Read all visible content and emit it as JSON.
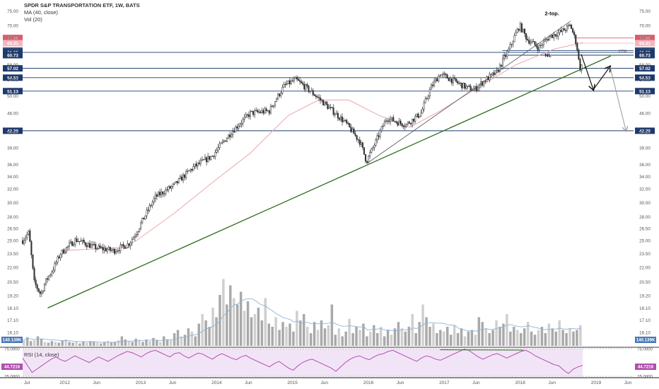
{
  "header": {
    "title": "SPDR S&P TRANSPORTATION ETF, 1W, BATS",
    "ma_label": "MA (40, close)",
    "vol_label": "Vol (20)",
    "rsi_label": "RSI (14, close)"
  },
  "annotations": {
    "two_top": "2-top.",
    "neckline": "NL",
    "xtm": "XTM"
  },
  "colors": {
    "candles": "#333333",
    "ma": "#e8a8a8",
    "trendline": "#2e6b1f",
    "hline": "#2a4d7f",
    "resistance": "#e05a6a",
    "volume": "#a9a9a9",
    "volume_ma": "#8fb3d9",
    "rsi_line": "#b04fb0",
    "rsi_fill": "#f2e4f7"
  },
  "chart_data": [
    {
      "type": "candlestick",
      "name": "price",
      "y_scale": "log",
      "ylim": [
        15.1,
        77.5
      ],
      "yticks": [
        16.1,
        17.1,
        18.1,
        19.2,
        20.5,
        22.0,
        23.5,
        25.0,
        26.5,
        28.0,
        30.0,
        32.0,
        34.0,
        36.0,
        39.0,
        42.0,
        46.0,
        50.0,
        54.0,
        58.0,
        62.0,
        66.0,
        70.0,
        75.0
      ],
      "xlim": [
        2011.5,
        2019.55
      ],
      "xticks": [
        {
          "label": "Jul",
          "t": 2011.5
        },
        {
          "label": "2012",
          "t": 2012.0
        },
        {
          "label": "Jun",
          "t": 2012.42
        },
        {
          "label": "2013",
          "t": 2013.0
        },
        {
          "label": "Jun",
          "t": 2013.42
        },
        {
          "label": "2014",
          "t": 2014.0
        },
        {
          "label": "Jun",
          "t": 2014.42
        },
        {
          "label": "2015",
          "t": 2015.0
        },
        {
          "label": "Jun",
          "t": 2015.42
        },
        {
          "label": "2016",
          "t": 2016.0
        },
        {
          "label": "Jun",
          "t": 2016.42
        },
        {
          "label": "2017",
          "t": 2017.0
        },
        {
          "label": "Jun",
          "t": 2017.42
        },
        {
          "label": "2018",
          "t": 2018.0
        },
        {
          "label": "Jun",
          "t": 2018.42
        },
        {
          "label": "2019",
          "t": 2019.0
        },
        {
          "label": "Jun",
          "t": 2019.42
        }
      ],
      "price_path": [
        [
          2011.5,
          25.0
        ],
        [
          2011.58,
          26.0
        ],
        [
          2011.65,
          20.5
        ],
        [
          2011.74,
          19.3
        ],
        [
          2011.8,
          20.5
        ],
        [
          2011.9,
          21.8
        ],
        [
          2012.0,
          23.5
        ],
        [
          2012.2,
          25.1
        ],
        [
          2012.45,
          24.2
        ],
        [
          2012.7,
          23.8
        ],
        [
          2012.9,
          24.6
        ],
        [
          2013.0,
          26.0
        ],
        [
          2013.25,
          30.8
        ],
        [
          2013.5,
          32.6
        ],
        [
          2013.75,
          35.5
        ],
        [
          2014.0,
          37.5
        ],
        [
          2014.25,
          42.0
        ],
        [
          2014.5,
          46.0
        ],
        [
          2014.75,
          46.5
        ],
        [
          2014.95,
          52.5
        ],
        [
          2015.1,
          54.0
        ],
        [
          2015.3,
          51.0
        ],
        [
          2015.55,
          47.0
        ],
        [
          2015.75,
          44.0
        ],
        [
          2015.95,
          40.0
        ],
        [
          2016.03,
          36.5
        ],
        [
          2016.15,
          40.0
        ],
        [
          2016.3,
          45.0
        ],
        [
          2016.45,
          44.0
        ],
        [
          2016.55,
          43.5
        ],
        [
          2016.75,
          46.0
        ],
        [
          2016.88,
          52.0
        ],
        [
          2017.0,
          55.5
        ],
        [
          2017.2,
          53.5
        ],
        [
          2017.35,
          52.0
        ],
        [
          2017.45,
          51.5
        ],
        [
          2017.6,
          54.0
        ],
        [
          2017.75,
          56.0
        ],
        [
          2017.9,
          62.0
        ],
        [
          2018.05,
          70.0
        ],
        [
          2018.15,
          65.5
        ],
        [
          2018.3,
          63.0
        ],
        [
          2018.45,
          66.5
        ],
        [
          2018.6,
          68.0
        ],
        [
          2018.72,
          70.0
        ],
        [
          2018.8,
          64.0
        ],
        [
          2018.84,
          57.0
        ],
        [
          2018.88,
          58.0
        ]
      ],
      "ma_40_path": [
        [
          2012.0,
          23.8
        ],
        [
          2012.4,
          24.0
        ],
        [
          2012.8,
          24.2
        ],
        [
          2013.0,
          25.0
        ],
        [
          2013.5,
          28.5
        ],
        [
          2014.0,
          33.0
        ],
        [
          2014.5,
          38.0
        ],
        [
          2015.0,
          45.5
        ],
        [
          2015.4,
          49.0
        ],
        [
          2015.8,
          49.0
        ],
        [
          2016.2,
          45.5
        ],
        [
          2016.6,
          43.0
        ],
        [
          2017.0,
          46.5
        ],
        [
          2017.5,
          52.0
        ],
        [
          2018.0,
          58.0
        ],
        [
          2018.5,
          62.5
        ],
        [
          2018.88,
          64.5
        ]
      ],
      "horizontal_levels": [
        {
          "label": "65.95",
          "value": 65.95,
          "color": "#e05a6a",
          "from": 2018.78
        },
        {
          "label": "64.31",
          "value": 64.31,
          "color": "#f4b6bf",
          "from": 2018.78
        },
        {
          "label": "62.07",
          "value": 62.07,
          "color": "#2a4d7f",
          "from": 2017.82
        },
        {
          "label": "61.55",
          "value": 61.55,
          "color": "#1e3a6e",
          "from": 2011.5
        },
        {
          "label": "60.73",
          "value": 60.73,
          "color": "#1e3a6e",
          "from": 2017.82
        },
        {
          "label": "57.02",
          "value": 57.02,
          "color": "#1e3a6e",
          "from": 2011.5
        },
        {
          "label": "54.53",
          "value": 54.53,
          "color": "#1e3a6e",
          "from": 2011.5
        },
        {
          "label": "51.13",
          "value": 51.13,
          "color": "#1e3a6e",
          "from": 2011.5
        },
        {
          "label": "42.29",
          "value": 42.29,
          "color": "#1e3a6e",
          "from": 2011.5
        }
      ],
      "trendlines": [
        {
          "from": [
            2011.83,
            18.1
          ],
          "to": [
            2019.25,
            60.5
          ],
          "color": "#2e6b1f"
        },
        {
          "from": [
            2016.03,
            36.1
          ],
          "to": [
            2018.72,
            71.5
          ],
          "color": "#555555"
        }
      ],
      "projection_black": [
        [
          2018.86,
          61.0
        ],
        [
          2019.02,
          51.5
        ],
        [
          2019.24,
          57.5
        ]
      ],
      "projection_grey": [
        [
          2019.24,
          57.5
        ],
        [
          2019.45,
          42.3
        ]
      ]
    },
    {
      "type": "bar",
      "name": "volume",
      "ylim": [
        0,
        520
      ],
      "last_value_label": "140.139K",
      "ma_label": "140.139K",
      "values": [
        40,
        55,
        30,
        35,
        60,
        45,
        25,
        20,
        30,
        25,
        20,
        35,
        40,
        25,
        20,
        30,
        15,
        25,
        20,
        30,
        25,
        20,
        15,
        25,
        30,
        20,
        25,
        35,
        60,
        40,
        30,
        25,
        45,
        35,
        25,
        40,
        30,
        50,
        35,
        25,
        60,
        40,
        35,
        80,
        100,
        60,
        70,
        110,
        90,
        60,
        140,
        200,
        160,
        120,
        240,
        180,
        320,
        420,
        260,
        380,
        300,
        260,
        340,
        220,
        280,
        180,
        200,
        240,
        160,
        300,
        140,
        120,
        180,
        100,
        150,
        120,
        140,
        90,
        220,
        160,
        200,
        120,
        80,
        150,
        100,
        160,
        110,
        130,
        260,
        70,
        110,
        60,
        90,
        170,
        80,
        120,
        100,
        140,
        60,
        90,
        130,
        80,
        120,
        60,
        100,
        70,
        110,
        150,
        110,
        90,
        120,
        200,
        80,
        150,
        260,
        180,
        120,
        140,
        80,
        100,
        90,
        120,
        70,
        130,
        80,
        110,
        60,
        90,
        100,
        70,
        180,
        150,
        110,
        80,
        100,
        160,
        120,
        140,
        200,
        90,
        120,
        100,
        80,
        110,
        150,
        90,
        70,
        100,
        120,
        80,
        140,
        110,
        90,
        160,
        100,
        80,
        110,
        90,
        100,
        130
      ]
    },
    {
      "type": "line",
      "name": "rsi",
      "ylim": [
        25,
        75
      ],
      "yticks": [
        25,
        75
      ],
      "yticks_labels": [
        "25.0000",
        "75.0000"
      ],
      "last_value_label": "44.7216",
      "values": [
        58,
        45,
        32,
        38,
        44,
        50,
        56,
        60,
        55,
        52,
        57,
        62,
        58,
        54,
        50,
        55,
        60,
        56,
        52,
        57,
        62,
        66,
        70,
        68,
        64,
        60,
        66,
        70,
        72,
        68,
        64,
        60,
        66,
        68,
        62,
        58,
        63,
        67,
        65,
        60,
        56,
        62,
        66,
        62,
        58,
        55,
        60,
        63,
        58,
        54,
        50,
        46,
        42,
        48,
        52,
        46,
        40,
        36,
        44,
        50,
        54,
        56,
        52,
        48,
        44,
        40,
        34,
        42,
        50,
        56,
        60,
        62,
        58,
        55,
        60,
        64,
        66,
        70,
        72,
        68,
        64,
        60,
        56,
        52,
        58,
        62,
        60,
        56,
        54,
        58,
        62,
        66,
        70,
        74,
        72,
        66,
        60,
        56,
        60,
        64,
        66,
        62,
        58,
        62,
        66,
        70,
        72,
        68,
        62,
        58,
        54,
        50,
        46,
        44,
        36,
        30,
        38,
        42,
        44.7
      ],
      "annotation_line": {
        "from": [
          2017.0,
          73
        ],
        "to": [
          2018.1,
          72.5
        ],
        "color": "#2e6b1f"
      }
    }
  ]
}
